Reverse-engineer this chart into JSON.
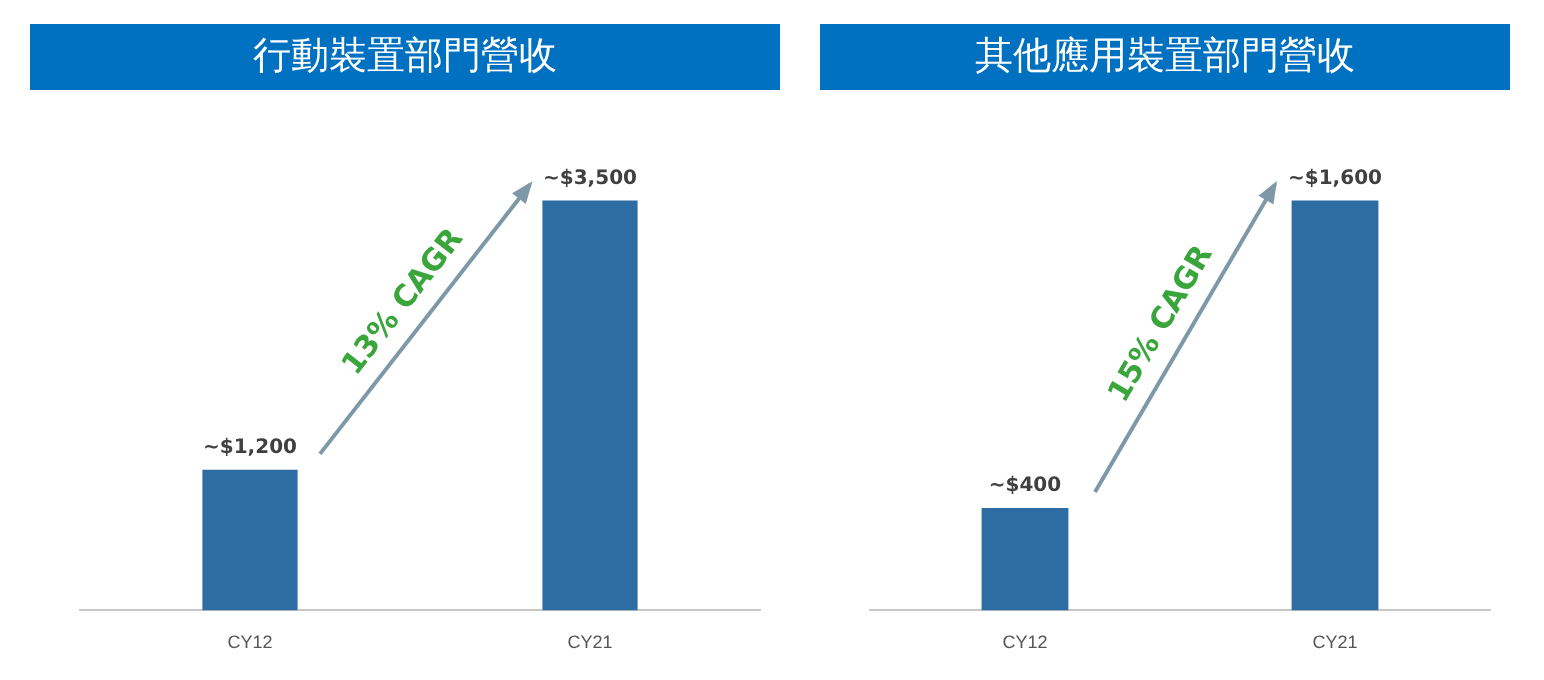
{
  "chart_data": [
    {
      "type": "bar",
      "title": "行動裝置部門營收",
      "categories": [
        "CY12",
        "CY21"
      ],
      "values": [
        1200,
        3500
      ],
      "color": "#2e6da4",
      "value_labels": [
        "~$1,200",
        "~$3,500"
      ],
      "annotations": [
        "13% CAGR"
      ]
    },
    {
      "type": "bar",
      "title": "其他應用裝置部門營收",
      "categories": [
        "CY12",
        "CY21"
      ],
      "values": [
        400,
        1600
      ],
      "color": "#2e6da4",
      "value_labels": [
        "~$400",
        "~$1,600"
      ],
      "annotations": [
        "15% CAGR"
      ]
    }
  ]
}
